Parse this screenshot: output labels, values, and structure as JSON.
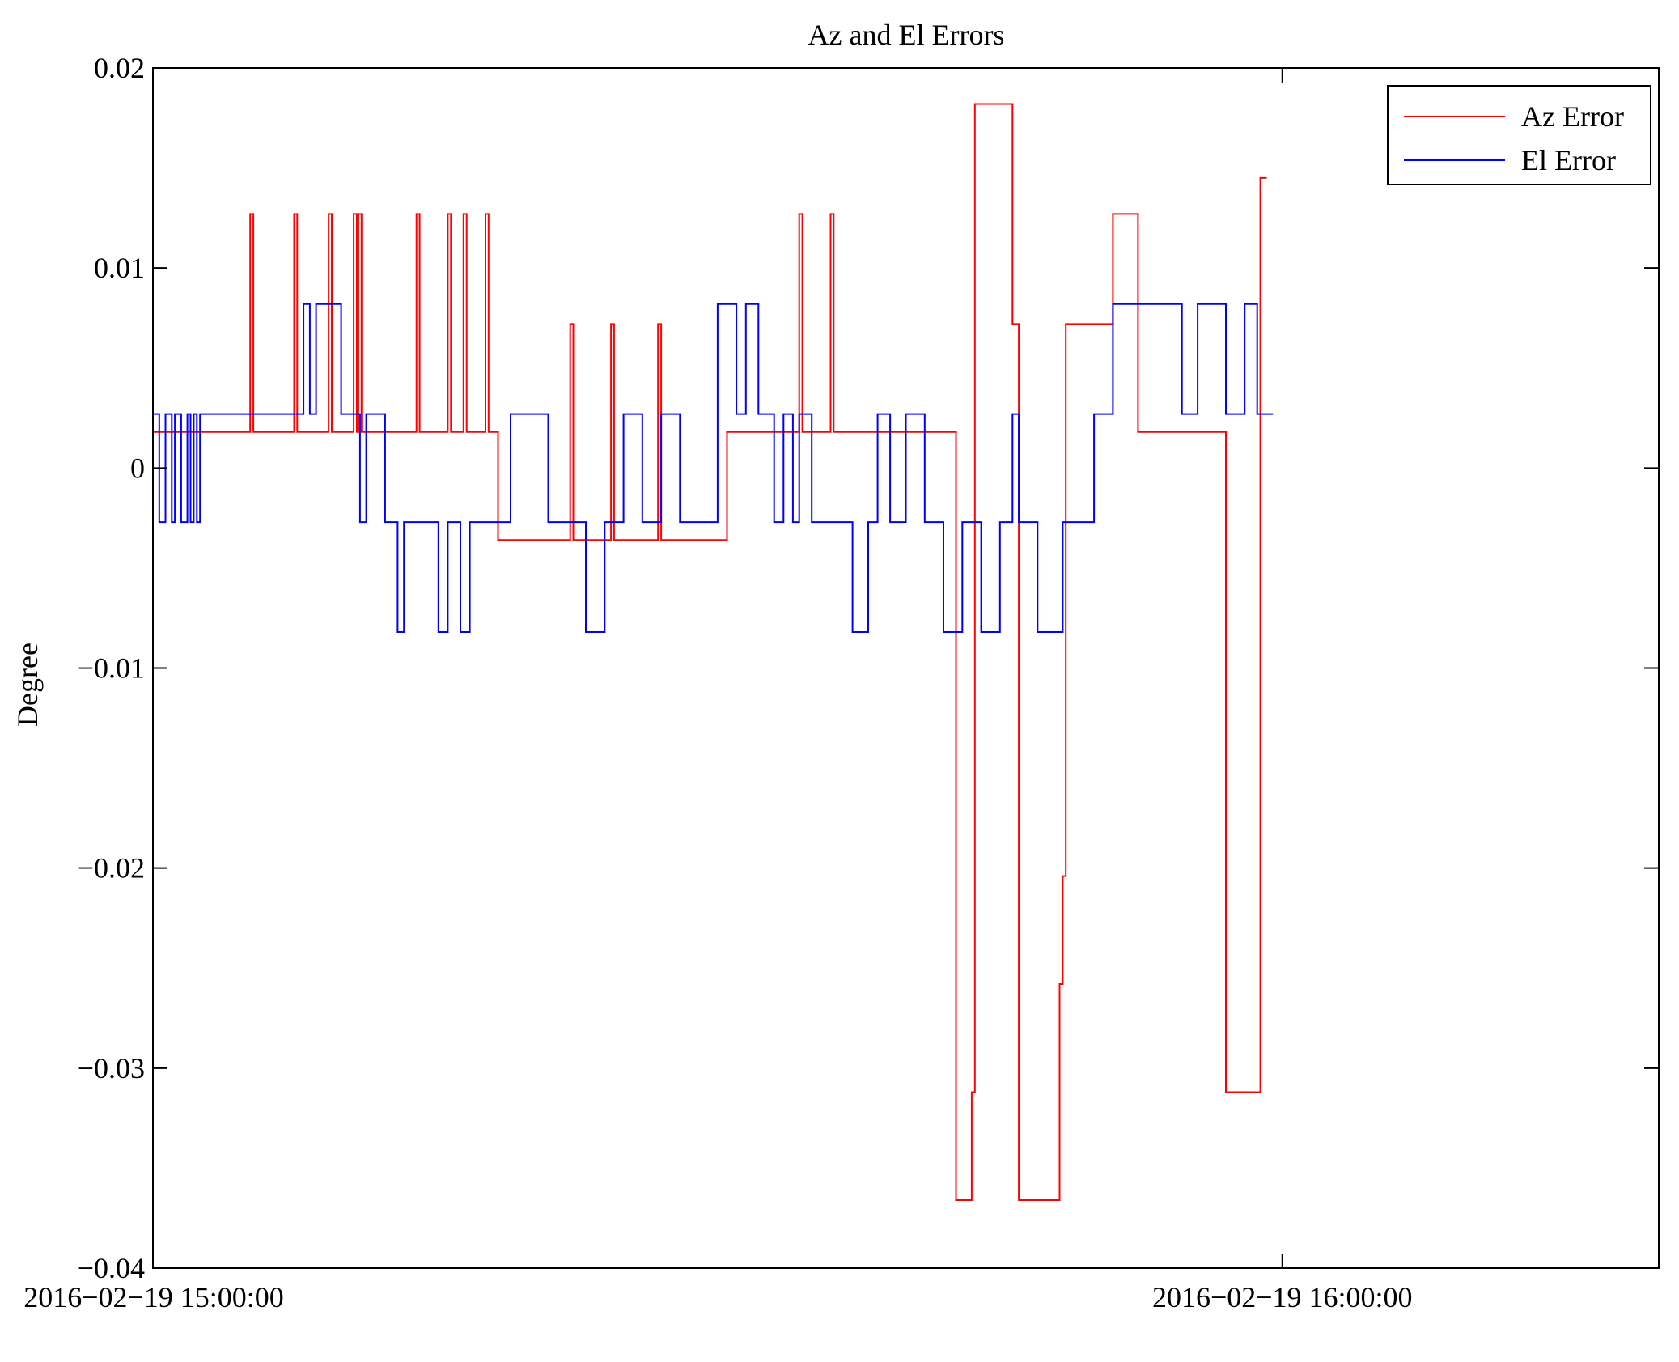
{
  "chart_data": {
    "type": "line",
    "title": "Az and El Errors",
    "xlabel": "",
    "ylabel": "Degree",
    "xlim": [
      "2016-02-19 15:00:00",
      "2016-02-19 16:20:00"
    ],
    "ylim": [
      -0.04,
      0.02
    ],
    "y_ticks": [
      0.02,
      0.01,
      0,
      -0.01,
      -0.02,
      -0.03,
      -0.04
    ],
    "y_tick_labels": [
      "0.02",
      "0.01",
      "0",
      "−0.01",
      "−0.02",
      "−0.03",
      "−0.04"
    ],
    "x_ticks": [
      "2016-02-19 15:00:00",
      "2016-02-19 16:00:00"
    ],
    "x_tick_labels": [
      "2016−02−19 15:00:00",
      "2016−02−19 16:00:00"
    ],
    "legend_position": "top-right",
    "grid": false,
    "line_style": "step",
    "series": [
      {
        "name": "Az Error",
        "color": "#ff0000",
        "x": [
          "15:00:00",
          "15:05:00",
          "15:05:10",
          "15:05:20",
          "15:07:20",
          "15:07:30",
          "15:07:40",
          "15:09:10",
          "15:09:20",
          "15:09:30",
          "15:10:30",
          "15:10:40",
          "15:10:50",
          "15:10:55",
          "15:11:05",
          "15:11:10",
          "15:13:50",
          "15:14:00",
          "15:14:10",
          "15:15:30",
          "15:15:40",
          "15:15:50",
          "15:16:20",
          "15:16:30",
          "15:16:40",
          "15:17:30",
          "15:17:40",
          "15:17:50",
          "15:18:10",
          "15:18:20",
          "15:20:20",
          "15:22:00",
          "15:22:10",
          "15:22:20",
          "15:24:10",
          "15:24:20",
          "15:24:30",
          "15:26:40",
          "15:26:50",
          "15:27:00",
          "15:30:30",
          "15:34:10",
          "15:34:20",
          "15:34:30",
          "15:35:50",
          "15:36:00",
          "15:36:10",
          "15:42:30",
          "15:42:40",
          "15:42:50",
          "15:43:30",
          "15:43:40",
          "15:43:50",
          "15:45:30",
          "15:45:40",
          "15:46:00",
          "15:48:00",
          "15:48:10",
          "15:48:20",
          "15:48:30",
          "15:48:40",
          "15:51:00",
          "15:51:20",
          "15:52:10",
          "15:52:20",
          "15:52:40",
          "15:53:10",
          "15:57:00",
          "15:57:30",
          "15:58:50",
          "15:59:10"
        ],
        "y": [
          0.0018,
          0.0018,
          0.0127,
          0.0018,
          0.0018,
          0.0127,
          0.0018,
          0.0018,
          0.0127,
          0.0018,
          0.0018,
          0.0127,
          0.0018,
          0.0127,
          0.0018,
          0.0018,
          0.0018,
          0.0127,
          0.0018,
          0.0018,
          0.0127,
          0.0018,
          0.0018,
          0.0127,
          0.0018,
          0.0018,
          0.0127,
          0.0018,
          0.0018,
          -0.0036,
          -0.0036,
          -0.0036,
          0.0072,
          -0.0036,
          -0.0036,
          0.0072,
          -0.0036,
          -0.0036,
          0.0072,
          -0.0036,
          0.0018,
          0.0018,
          0.0127,
          0.0018,
          0.0018,
          0.0127,
          0.0018,
          0.0018,
          -0.0366,
          -0.0366,
          -0.0312,
          0.0182,
          0.0182,
          0.0182,
          0.0072,
          -0.0366,
          -0.0366,
          -0.0258,
          -0.0204,
          0.0072,
          0.0072,
          0.0127,
          0.0127,
          0.0127,
          0.0018,
          0.0018,
          0.0018,
          -0.0312,
          -0.0312,
          0.0145,
          0.0145
        ]
      },
      {
        "name": "El Error",
        "color": "#0000ff",
        "x": [
          "15:00:00",
          "15:00:20",
          "15:00:40",
          "15:01:00",
          "15:01:10",
          "15:01:30",
          "15:01:50",
          "15:02:00",
          "15:02:10",
          "15:02:20",
          "15:02:30",
          "15:03:00",
          "15:08:00",
          "15:08:20",
          "15:08:40",
          "15:10:00",
          "15:11:00",
          "15:11:20",
          "15:12:20",
          "15:13:00",
          "15:13:20",
          "15:13:50",
          "15:15:10",
          "15:15:40",
          "15:16:20",
          "15:16:50",
          "15:17:30",
          "15:19:00",
          "15:21:00",
          "15:23:00",
          "15:24:00",
          "15:25:00",
          "15:26:00",
          "15:27:00",
          "15:28:00",
          "15:30:00",
          "15:31:00",
          "15:31:30",
          "15:32:10",
          "15:33:00",
          "15:33:30",
          "15:34:00",
          "15:34:20",
          "15:35:00",
          "15:37:10",
          "15:38:00",
          "15:38:30",
          "15:39:10",
          "15:40:00",
          "15:41:00",
          "15:42:00",
          "15:43:00",
          "15:44:00",
          "15:45:00",
          "15:45:40",
          "15:46:00",
          "15:47:00",
          "15:48:20",
          "15:50:00",
          "15:51:00",
          "15:52:30",
          "15:54:00",
          "15:54:40",
          "15:55:30",
          "15:56:00",
          "15:57:00",
          "15:58:00",
          "15:58:40",
          "15:59:30"
        ],
        "y": [
          0.0027,
          -0.0027,
          0.0027,
          -0.0027,
          0.0027,
          -0.0027,
          0.0027,
          -0.0027,
          0.0027,
          -0.0027,
          0.0027,
          0.0027,
          0.0082,
          0.0027,
          0.0082,
          0.0027,
          -0.0027,
          0.0027,
          -0.0027,
          -0.0082,
          -0.0027,
          -0.0027,
          -0.0082,
          -0.0027,
          -0.0082,
          -0.0027,
          -0.0027,
          0.0027,
          -0.0027,
          -0.0082,
          -0.0027,
          0.0027,
          -0.0027,
          0.0027,
          -0.0027,
          0.0082,
          0.0027,
          0.0082,
          0.0027,
          -0.0027,
          0.0027,
          -0.0027,
          0.0027,
          -0.0027,
          -0.0082,
          -0.0027,
          0.0027,
          -0.0027,
          0.0027,
          -0.0027,
          -0.0082,
          -0.0027,
          -0.0082,
          -0.0027,
          0.0027,
          -0.0027,
          -0.0082,
          -0.0027,
          0.0027,
          0.0082,
          0.0082,
          0.0082,
          0.0027,
          0.0082,
          0.0082,
          0.0027,
          0.0082,
          0.0027,
          0.0027
        ]
      }
    ]
  }
}
